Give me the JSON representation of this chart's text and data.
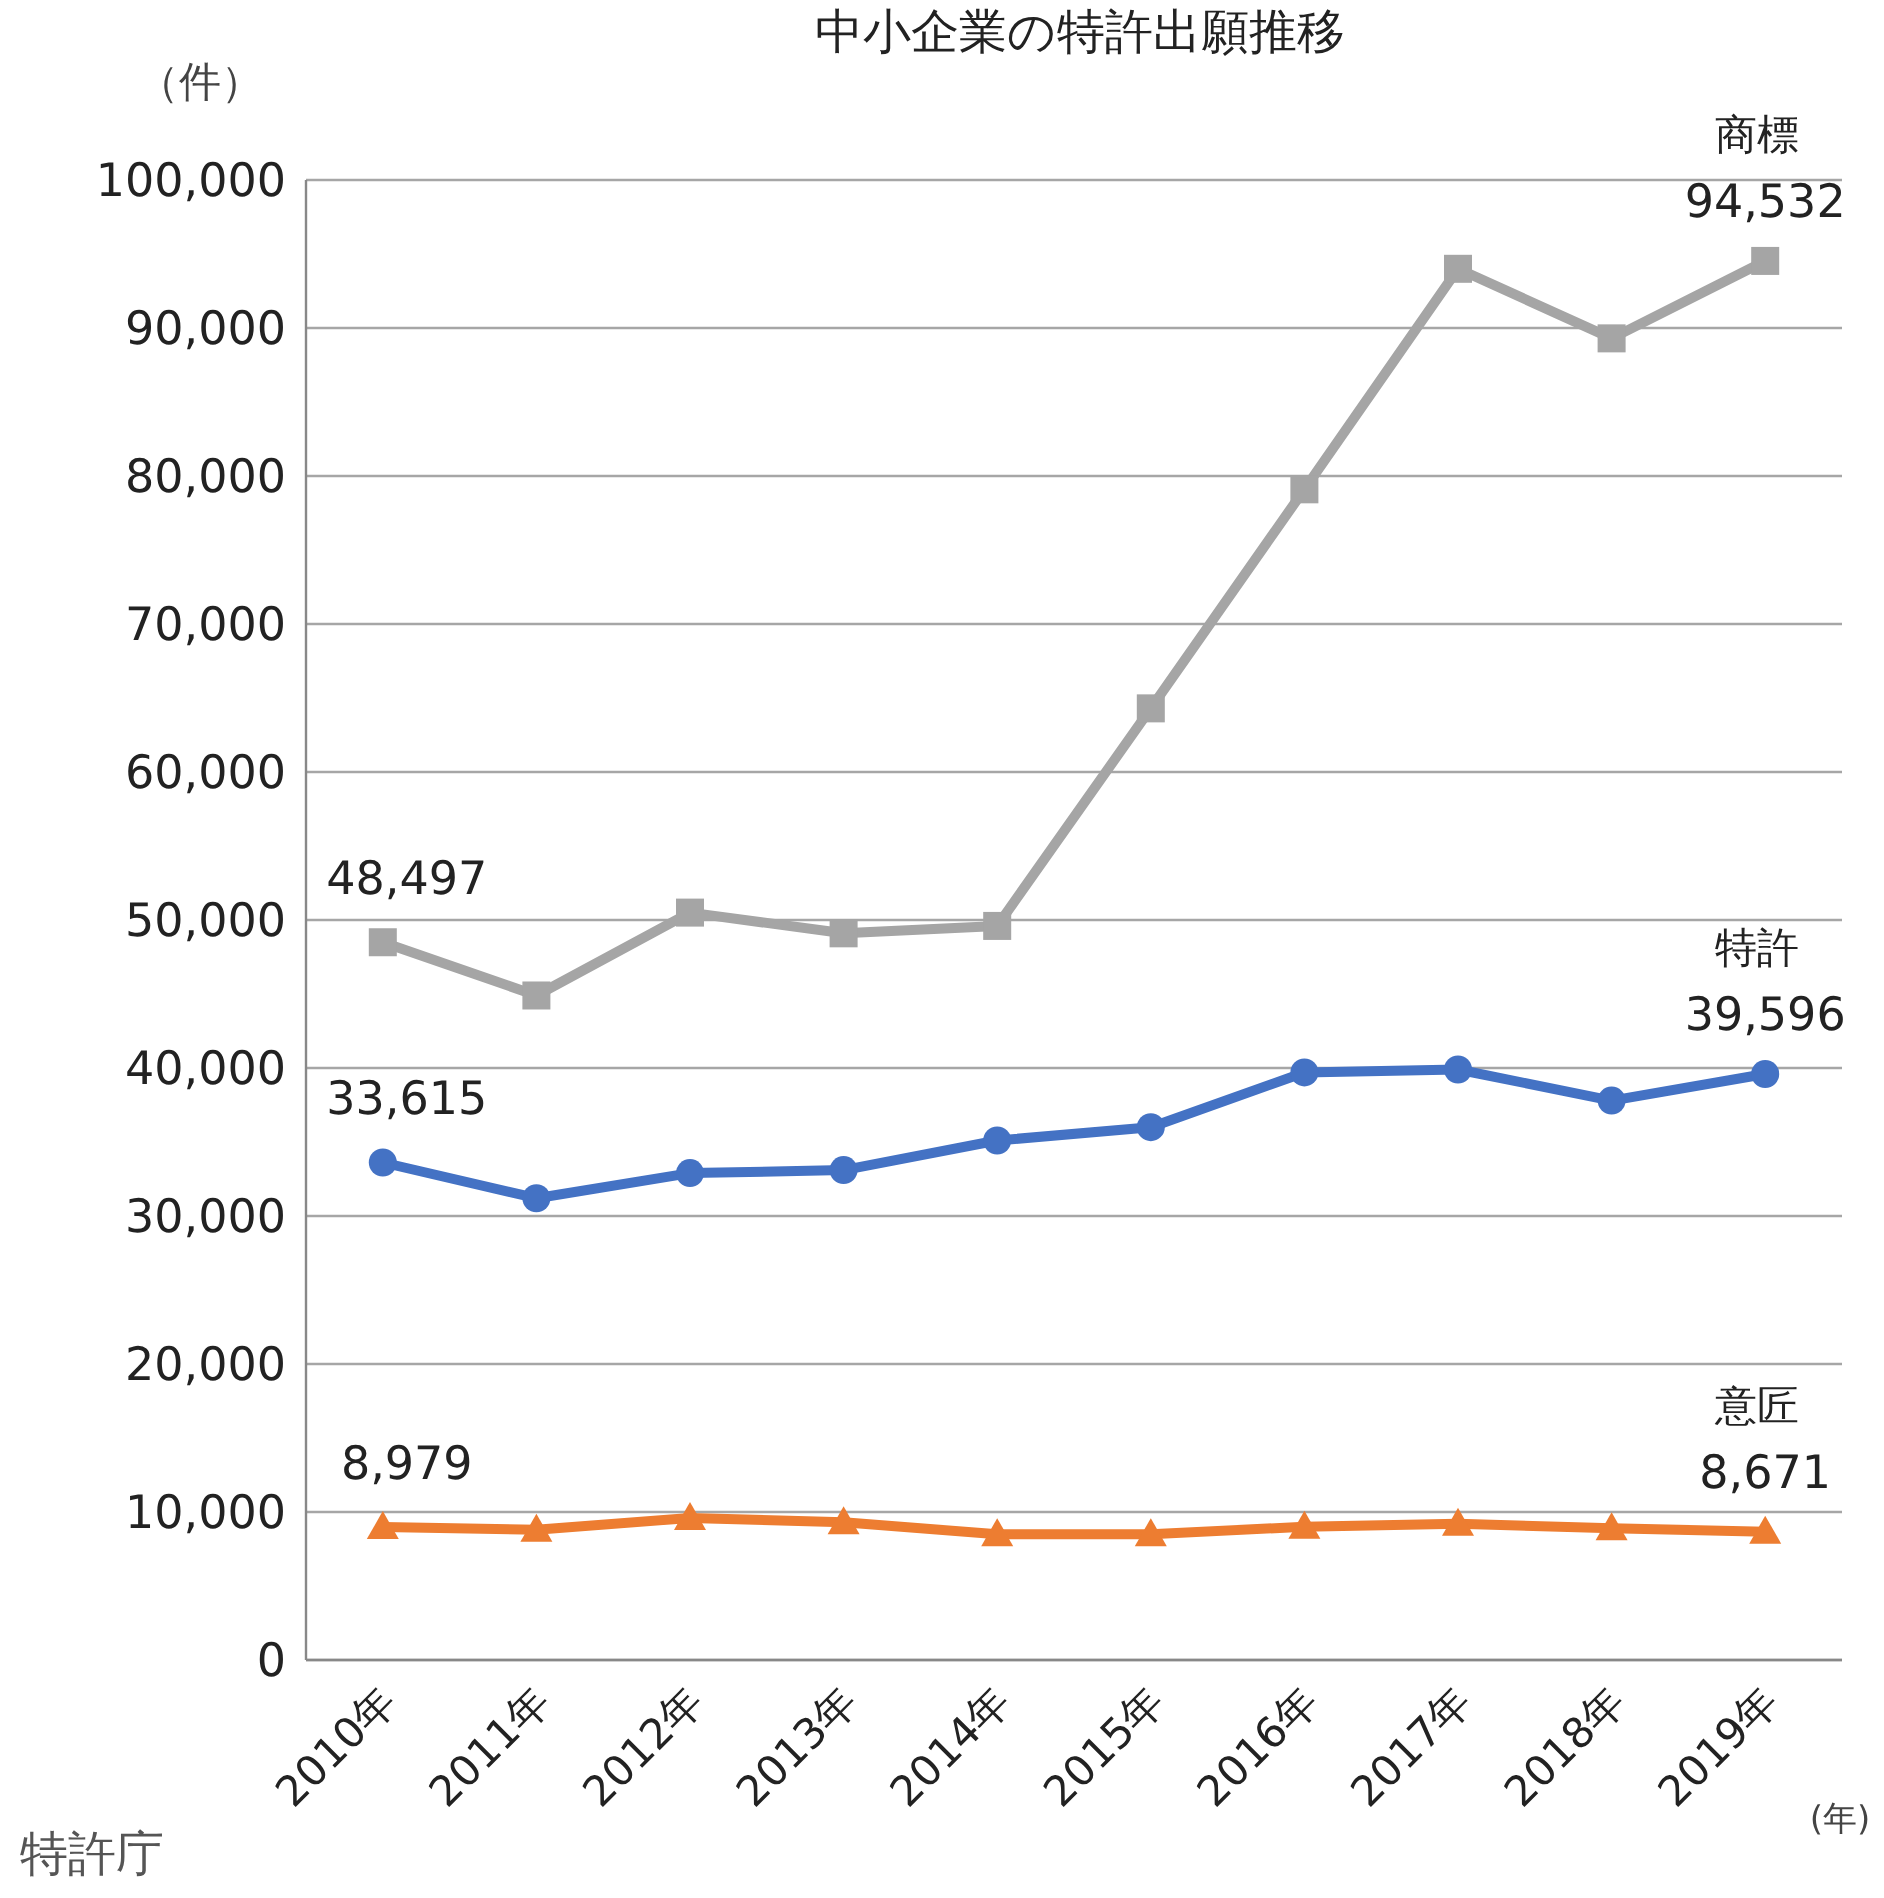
{
  "chart_data": {
    "type": "line",
    "title": "中小企業の特許出願推移",
    "ylabel": "（件）",
    "xlabel": "(年)",
    "categories": [
      "2010年",
      "2011年",
      "2012年",
      "2013年",
      "2014年",
      "2015年",
      "2016年",
      "2017年",
      "2018年",
      "2019年"
    ],
    "ylim": [
      0,
      100000
    ],
    "yticks": [
      {
        "value": 0,
        "label": "0"
      },
      {
        "value": 10000,
        "label": "10,000"
      },
      {
        "value": 20000,
        "label": "20,000"
      },
      {
        "value": 30000,
        "label": "30,000"
      },
      {
        "value": 40000,
        "label": "40,000"
      },
      {
        "value": 50000,
        "label": "50,000"
      },
      {
        "value": 60000,
        "label": "60,000"
      },
      {
        "value": 70000,
        "label": "70,000"
      },
      {
        "value": 80000,
        "label": "80,000"
      },
      {
        "value": 90000,
        "label": "90,000"
      },
      {
        "value": 100000,
        "label": "100,000"
      }
    ],
    "grid": "y",
    "legend": false,
    "series": [
      {
        "name": "商標",
        "color": "#a5a5a5",
        "marker": "square",
        "values": [
          48497,
          44900,
          50500,
          49100,
          49600,
          64300,
          79100,
          94000,
          89300,
          94532
        ],
        "value_labels": [
          "48,497",
          null,
          null,
          null,
          null,
          null,
          null,
          null,
          null,
          "94,532"
        ]
      },
      {
        "name": "特許",
        "color": "#4472c4",
        "marker": "circle",
        "values": [
          33615,
          31200,
          32900,
          33100,
          35100,
          36000,
          39700,
          39900,
          37800,
          39596
        ],
        "value_labels": [
          "33,615",
          null,
          null,
          null,
          null,
          null,
          null,
          null,
          null,
          "39,596"
        ]
      },
      {
        "name": "意匠",
        "color": "#ed7d31",
        "marker": "triangle",
        "values": [
          8979,
          8800,
          9600,
          9300,
          8500,
          8500,
          9000,
          9200,
          8900,
          8671
        ],
        "value_labels": [
          "8,979",
          null,
          null,
          null,
          null,
          null,
          null,
          null,
          null,
          "8,671"
        ]
      }
    ],
    "annotations": [
      "特許庁"
    ]
  }
}
